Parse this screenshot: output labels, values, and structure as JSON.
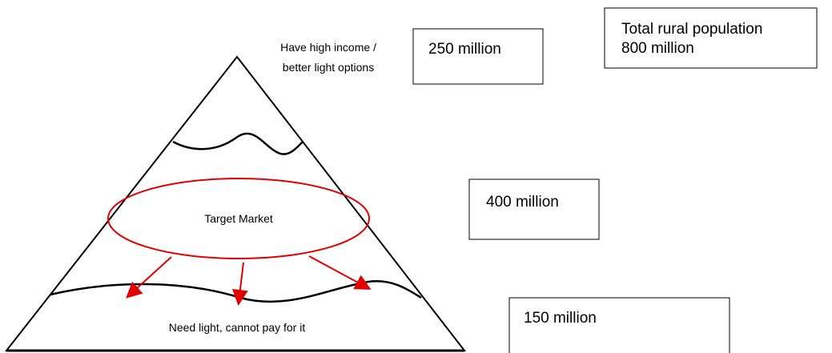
{
  "labels": {
    "top": [
      "Have high income /",
      "better light options"
    ],
    "middle": "Target Market",
    "bottom": "Need light, cannot pay for it"
  },
  "boxes": {
    "top": "250 million",
    "middle": "400 million",
    "bottom": "150 million",
    "total": [
      "Total rural population",
      "800 million"
    ]
  }
}
